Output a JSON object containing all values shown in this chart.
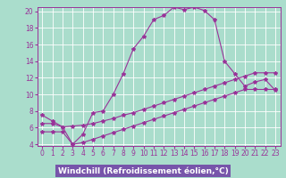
{
  "xlabel": "Windchill (Refroidissement éolien,°C)",
  "background_color": "#aaddcc",
  "line_color": "#993399",
  "grid_color": "#ffffff",
  "xlabel_bg_color": "#7755aa",
  "xlabel_text_color": "#ffffff",
  "x_values": [
    0,
    1,
    2,
    3,
    4,
    5,
    6,
    7,
    8,
    9,
    10,
    11,
    12,
    13,
    14,
    15,
    16,
    17,
    18,
    19,
    20,
    21,
    22,
    23
  ],
  "line1": [
    7.5,
    6.8,
    6.1,
    4.0,
    5.2,
    7.8,
    8.0,
    10.0,
    12.5,
    15.5,
    17.0,
    19.0,
    19.5,
    20.5,
    20.2,
    20.5,
    20.1,
    19.0,
    14.0,
    12.5,
    11.0,
    11.5,
    11.8,
    10.5
  ],
  "line2": [
    6.5,
    6.5,
    6.1,
    6.2,
    6.3,
    6.5,
    6.8,
    7.1,
    7.5,
    7.8,
    8.2,
    8.6,
    9.0,
    9.4,
    9.8,
    10.2,
    10.6,
    11.0,
    11.4,
    11.8,
    12.2,
    12.6,
    12.6,
    12.6
  ],
  "line3": [
    5.5,
    5.5,
    5.5,
    4.0,
    4.2,
    4.6,
    5.0,
    5.4,
    5.8,
    6.2,
    6.6,
    7.0,
    7.4,
    7.8,
    8.2,
    8.6,
    9.0,
    9.4,
    9.8,
    10.2,
    10.6,
    10.6,
    10.6,
    10.6
  ],
  "ylim": [
    4,
    20
  ],
  "xlim": [
    0,
    23
  ],
  "yticks": [
    4,
    6,
    8,
    10,
    12,
    14,
    16,
    18,
    20
  ],
  "xticks": [
    0,
    1,
    2,
    3,
    4,
    5,
    6,
    7,
    8,
    9,
    10,
    11,
    12,
    13,
    14,
    15,
    16,
    17,
    18,
    19,
    20,
    21,
    22,
    23
  ],
  "marker": "*",
  "marker_size": 3,
  "line_width": 0.8,
  "tick_fontsize": 5.5,
  "label_fontsize": 6.5
}
